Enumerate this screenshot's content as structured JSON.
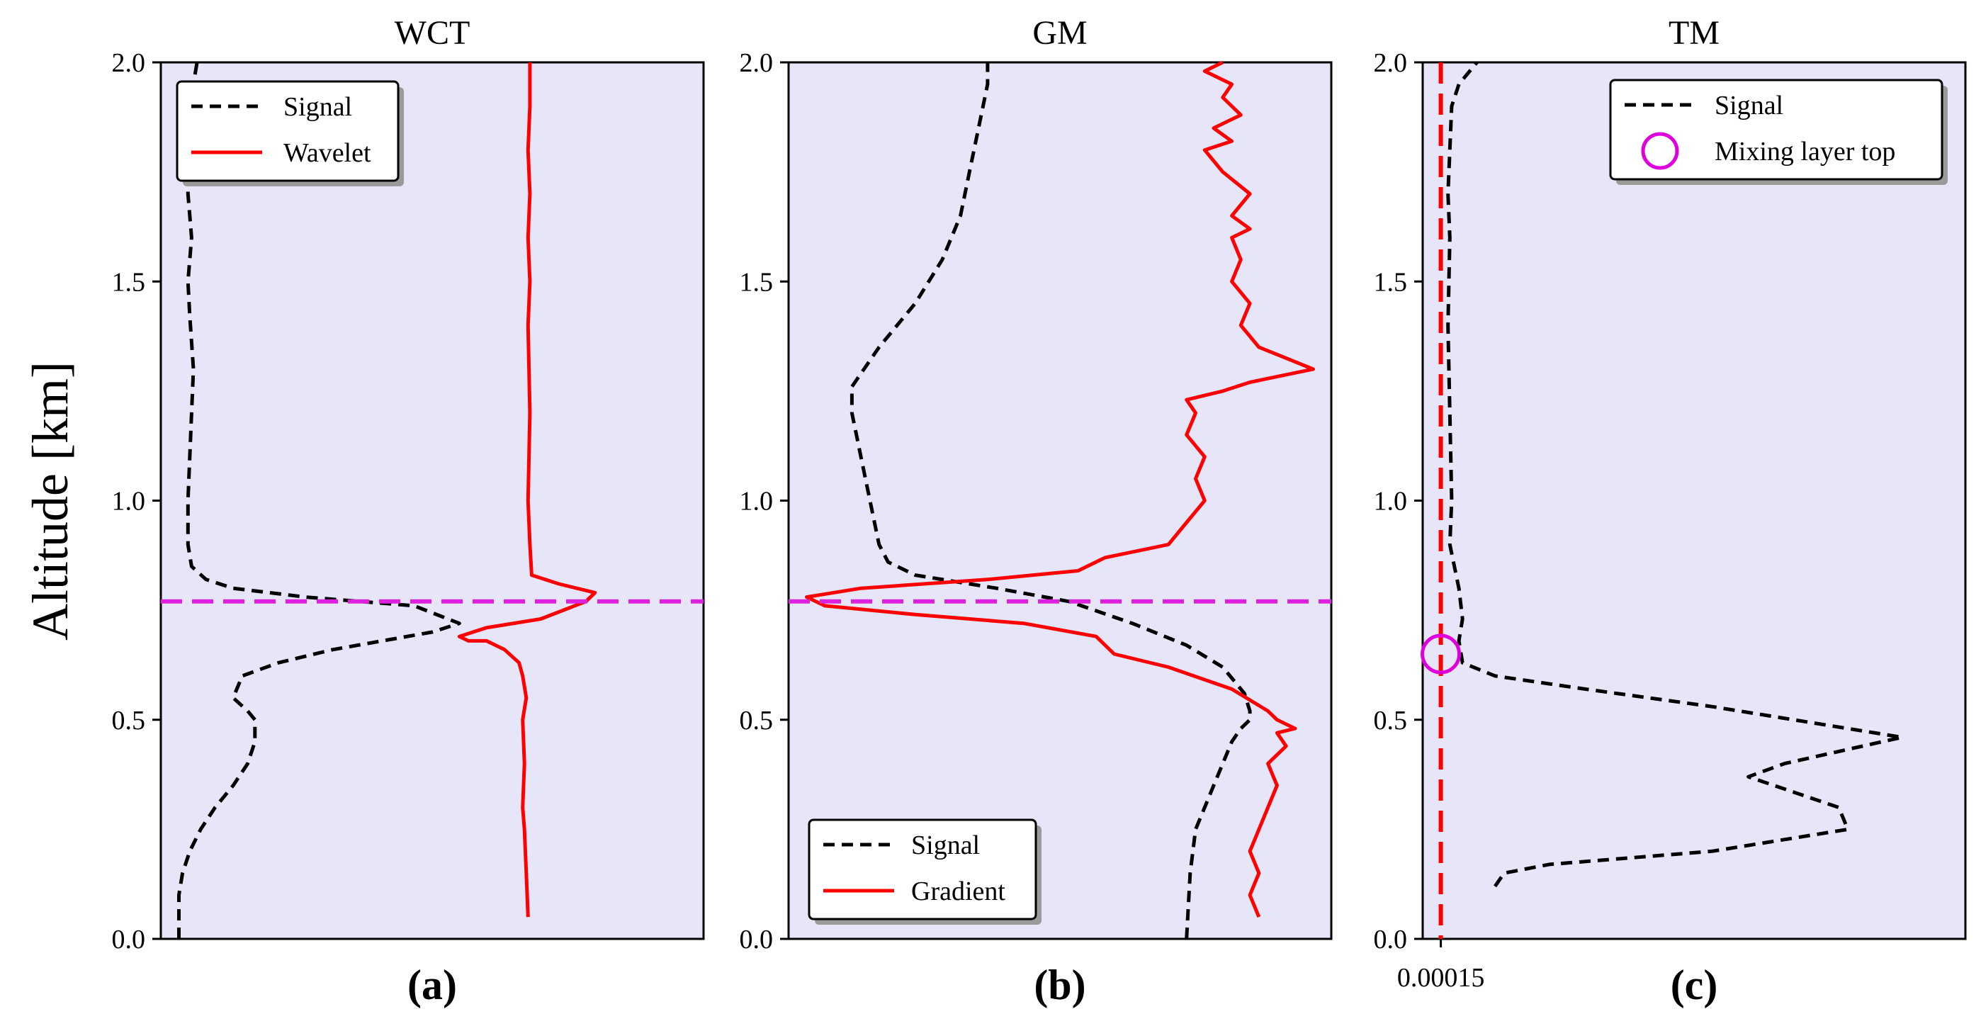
{
  "figure": {
    "ylabel": "Altitude [km]"
  },
  "chart_data": [
    {
      "type": "line",
      "title": "WCT",
      "caption": "(a)",
      "ylabel": "Altitude [km]",
      "ylim": [
        0,
        2.0
      ],
      "yticks": [
        "0.0",
        "0.5",
        "1.0",
        "1.5",
        "2.0"
      ],
      "xlim": [
        -0.1,
        2.9
      ],
      "legend": {
        "position": "upper-left",
        "entries": [
          "Signal",
          "Wavelet"
        ]
      },
      "hline": {
        "y": 0.77,
        "color": "#dd22dd",
        "style": "dashed"
      },
      "series": [
        {
          "name": "Signal",
          "color": "#000000",
          "style": "dashed",
          "x": [
            0,
            0,
            0.02,
            0.06,
            0.12,
            0.2,
            0.3,
            0.38,
            0.42,
            0.42,
            0.38,
            0.3,
            0.35,
            0.55,
            0.85,
            1.4,
            1.55,
            1.3,
            0.7,
            0.3,
            0.15,
            0.07,
            0.05,
            0.05,
            0.07,
            0.08,
            0.06,
            0.05,
            0.07,
            0.05,
            0.05,
            0.08,
            0.1
          ],
          "y": [
            0.0,
            0.1,
            0.15,
            0.2,
            0.25,
            0.3,
            0.35,
            0.4,
            0.45,
            0.5,
            0.52,
            0.55,
            0.6,
            0.63,
            0.66,
            0.7,
            0.72,
            0.76,
            0.78,
            0.8,
            0.82,
            0.85,
            0.9,
            1.0,
            1.2,
            1.3,
            1.42,
            1.5,
            1.6,
            1.7,
            1.8,
            1.95,
            2.0
          ]
        },
        {
          "name": "Wavelet",
          "color": "#ff0000",
          "style": "solid",
          "x": [
            1.93,
            1.92,
            1.91,
            1.9,
            1.91,
            1.9,
            1.92,
            1.9,
            1.88,
            1.8,
            1.7,
            1.6,
            1.55,
            1.7,
            2.0,
            2.25,
            2.3,
            2.1,
            1.95,
            1.94,
            1.93,
            1.94,
            1.93,
            1.94,
            1.93,
            1.94,
            1.93,
            1.94,
            1.94
          ],
          "y": [
            0.05,
            0.15,
            0.25,
            0.3,
            0.4,
            0.5,
            0.55,
            0.6,
            0.63,
            0.66,
            0.68,
            0.68,
            0.69,
            0.71,
            0.73,
            0.77,
            0.79,
            0.81,
            0.83,
            0.9,
            1.0,
            1.2,
            1.4,
            1.5,
            1.6,
            1.7,
            1.8,
            1.9,
            2.0
          ]
        }
      ]
    },
    {
      "type": "line",
      "title": "GM",
      "caption": "(b)",
      "ylim": [
        0,
        2.0
      ],
      "yticks": [
        "0.0",
        "0.5",
        "1.0",
        "1.5",
        "2.0"
      ],
      "xlim": [
        -0.1,
        2.9
      ],
      "legend": {
        "position": "lower-left",
        "entries": [
          "Signal",
          "Gradient"
        ]
      },
      "hline": {
        "y": 0.77,
        "color": "#dd22dd",
        "style": "dashed"
      },
      "series": [
        {
          "name": "Signal",
          "color": "#000000",
          "style": "dashed",
          "x": [
            2.1,
            2.12,
            2.15,
            2.2,
            2.25,
            2.3,
            2.35,
            2.4,
            2.45,
            2.45,
            2.42,
            2.3,
            2.1,
            1.8,
            1.45,
            1.05,
            0.6,
            0.45,
            0.4,
            0.35,
            0.3,
            0.25,
            0.25,
            0.4,
            0.6,
            0.75,
            0.85,
            0.9,
            0.95,
            1.0,
            1.0
          ],
          "y": [
            0.0,
            0.15,
            0.25,
            0.3,
            0.35,
            0.4,
            0.45,
            0.48,
            0.5,
            0.52,
            0.56,
            0.62,
            0.67,
            0.72,
            0.77,
            0.8,
            0.83,
            0.86,
            0.9,
            1.0,
            1.1,
            1.2,
            1.26,
            1.35,
            1.45,
            1.55,
            1.65,
            1.75,
            1.85,
            1.95,
            2.0
          ]
        },
        {
          "name": "Gradient",
          "color": "#ff0000",
          "style": "solid",
          "x": [
            2.5,
            2.45,
            2.5,
            2.45,
            2.5,
            2.55,
            2.6,
            2.55,
            2.65,
            2.6,
            2.7,
            2.6,
            2.55,
            2.35,
            2.0,
            1.7,
            1.6,
            1.2,
            0.6,
            0.1,
            0.0,
            0.3,
            1.0,
            1.5,
            1.65,
            2.0,
            2.1,
            2.2,
            2.15,
            2.2,
            2.1,
            2.15,
            2.1,
            2.3,
            2.45,
            2.8,
            2.5,
            2.4,
            2.45,
            2.35,
            2.4,
            2.35,
            2.45,
            2.35,
            2.45,
            2.3,
            2.2,
            2.35,
            2.25,
            2.4,
            2.3,
            2.35,
            2.2,
            2.3
          ],
          "y": [
            0.05,
            0.1,
            0.15,
            0.2,
            0.25,
            0.3,
            0.35,
            0.4,
            0.44,
            0.47,
            0.48,
            0.5,
            0.52,
            0.57,
            0.62,
            0.65,
            0.69,
            0.72,
            0.74,
            0.76,
            0.78,
            0.8,
            0.82,
            0.84,
            0.87,
            0.9,
            0.95,
            1.0,
            1.05,
            1.1,
            1.15,
            1.2,
            1.23,
            1.25,
            1.27,
            1.3,
            1.35,
            1.4,
            1.45,
            1.5,
            1.55,
            1.6,
            1.62,
            1.65,
            1.7,
            1.75,
            1.8,
            1.82,
            1.85,
            1.88,
            1.92,
            1.95,
            1.98,
            2.0
          ]
        }
      ]
    },
    {
      "type": "line",
      "title": "TM",
      "caption": "(c)",
      "ylim": [
        0,
        2.0
      ],
      "yticks": [
        "0.0",
        "0.5",
        "1.0",
        "1.5",
        "2.0"
      ],
      "xlim": [
        -0.1,
        2.9
      ],
      "xtick": {
        "value": 0.00015,
        "label": "0.00015",
        "color": "#ff0000"
      },
      "threshold_line": {
        "value": 0.00015,
        "color": "#ff0000",
        "style": "dashed"
      },
      "legend": {
        "position": "upper-right",
        "entries": [
          "Signal",
          "Mixing layer top"
        ]
      },
      "mixing_layer_top": {
        "x": 0.00015,
        "y": 0.65,
        "color": "#dd00dd"
      },
      "series": [
        {
          "name": "Signal",
          "color": "#000000",
          "style": "dashed",
          "x": [
            0.3,
            0.35,
            0.6,
            1.5,
            2.25,
            2.2,
            1.7,
            1.9,
            2.55,
            1.5,
            0.8,
            0.3,
            0.12,
            0.1,
            0.12,
            0.1,
            0.05,
            0.06,
            0.05,
            0.04,
            0.05,
            0.04,
            0.05,
            0.06,
            0.1,
            0.2
          ],
          "y": [
            0.12,
            0.15,
            0.17,
            0.2,
            0.25,
            0.3,
            0.37,
            0.4,
            0.46,
            0.53,
            0.57,
            0.6,
            0.63,
            0.68,
            0.73,
            0.8,
            0.9,
            1.0,
            1.2,
            1.4,
            1.6,
            1.7,
            1.8,
            1.9,
            1.95,
            2.0
          ]
        }
      ]
    }
  ]
}
